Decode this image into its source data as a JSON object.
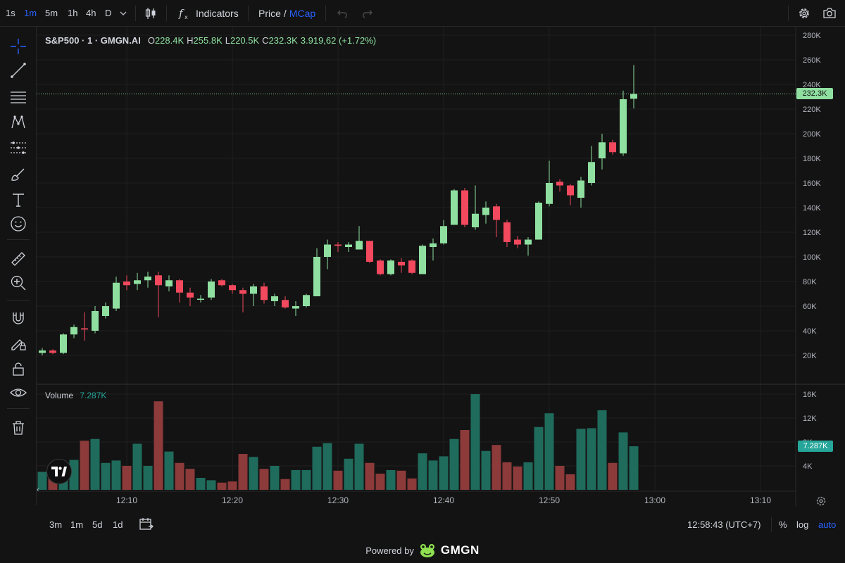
{
  "toolbar": {
    "timeframes": [
      "1s",
      "1m",
      "5m",
      "1h",
      "4h",
      "D"
    ],
    "active_timeframe": "1m",
    "indicators_label": "Indicators",
    "price_label": "Price",
    "price_sep": "/",
    "mcap_label": "MCap"
  },
  "legend": {
    "symbol": "S&P500 · 1 · GMGN.AI",
    "o_key": "O",
    "o_val": "228.4K",
    "h_key": "H",
    "h_val": "255.8K",
    "l_key": "L",
    "l_val": "220.5K",
    "c_key": "C",
    "c_val": "232.3K",
    "change": "3.919,62 (+1.72%)"
  },
  "volume_legend": {
    "label": "Volume",
    "value": "7.287K"
  },
  "price_tag": "232.3K",
  "volume_tag": "7.287K",
  "price_axis": [
    "280K",
    "260K",
    "240K",
    "220K",
    "200K",
    "180K",
    "160K",
    "140K",
    "120K",
    "100K",
    "80K",
    "60K",
    "40K",
    "20K"
  ],
  "volume_axis": [
    "16K",
    "12K",
    "8K",
    "4K"
  ],
  "time_axis": [
    "12:10",
    "12:20",
    "12:30",
    "12:40",
    "12:50",
    "13:00",
    "13:10"
  ],
  "bottom": {
    "ranges": [
      "3m",
      "1m",
      "5d",
      "1d"
    ],
    "clock": "12:58:43 (UTC+7)",
    "percent": "%",
    "log": "log",
    "auto": "auto"
  },
  "powered": {
    "text": "Powered by",
    "brand": "GMGN"
  },
  "tv_logo": "TV",
  "colors": {
    "up": "#8fe0a0",
    "down": "#f2495e",
    "vol_up": "#1f6b5c",
    "vol_down": "#8c3a3a",
    "accent": "#2962ff",
    "background": "#131313"
  },
  "chart_data": {
    "type": "candlestick",
    "ylim": [
      0,
      290000
    ],
    "volume_ylim": [
      0,
      18000
    ],
    "x_start": "12:02",
    "x_step_minutes": 1,
    "candles": [
      {
        "o": 22000,
        "h": 26000,
        "l": 20000,
        "c": 24000,
        "v": 3000
      },
      {
        "o": 24000,
        "h": 25000,
        "l": 21000,
        "c": 22000,
        "v": 2600
      },
      {
        "o": 22000,
        "h": 38000,
        "l": 21000,
        "c": 37000,
        "v": 3500
      },
      {
        "o": 37000,
        "h": 45000,
        "l": 34000,
        "c": 43000,
        "v": 5000
      },
      {
        "o": 42000,
        "h": 55000,
        "l": 32000,
        "c": 41000,
        "v": 8200
      },
      {
        "o": 40000,
        "h": 60000,
        "l": 38000,
        "c": 56000,
        "v": 8500
      },
      {
        "o": 52000,
        "h": 63000,
        "l": 50000,
        "c": 60000,
        "v": 4500
      },
      {
        "o": 58000,
        "h": 84000,
        "l": 56000,
        "c": 79000,
        "v": 4900
      },
      {
        "o": 80000,
        "h": 85000,
        "l": 73000,
        "c": 77000,
        "v": 4000
      },
      {
        "o": 78000,
        "h": 87000,
        "l": 73000,
        "c": 81000,
        "v": 7700
      },
      {
        "o": 81000,
        "h": 88000,
        "l": 75000,
        "c": 84000,
        "v": 4000
      },
      {
        "o": 85000,
        "h": 88000,
        "l": 51000,
        "c": 77000,
        "v": 14800
      },
      {
        "o": 76000,
        "h": 85000,
        "l": 72000,
        "c": 81000,
        "v": 6400
      },
      {
        "o": 81000,
        "h": 82000,
        "l": 63000,
        "c": 71000,
        "v": 4500
      },
      {
        "o": 71000,
        "h": 75000,
        "l": 60000,
        "c": 67000,
        "v": 3500
      },
      {
        "o": 66000,
        "h": 69000,
        "l": 63000,
        "c": 66000,
        "v": 2000
      },
      {
        "o": 67000,
        "h": 82000,
        "l": 65000,
        "c": 80000,
        "v": 1600
      },
      {
        "o": 81000,
        "h": 82000,
        "l": 76000,
        "c": 77000,
        "v": 1200
      },
      {
        "o": 77000,
        "h": 78000,
        "l": 70000,
        "c": 73000,
        "v": 1400
      },
      {
        "o": 73000,
        "h": 75000,
        "l": 55000,
        "c": 70000,
        "v": 6000
      },
      {
        "o": 70000,
        "h": 78000,
        "l": 60000,
        "c": 76000,
        "v": 5500
      },
      {
        "o": 76000,
        "h": 79000,
        "l": 62000,
        "c": 65000,
        "v": 3500
      },
      {
        "o": 64000,
        "h": 70000,
        "l": 60000,
        "c": 68000,
        "v": 4000
      },
      {
        "o": 65000,
        "h": 68000,
        "l": 58000,
        "c": 59000,
        "v": 1800
      },
      {
        "o": 58000,
        "h": 64000,
        "l": 52000,
        "c": 60000,
        "v": 3300
      },
      {
        "o": 60000,
        "h": 70000,
        "l": 59000,
        "c": 69000,
        "v": 3300
      },
      {
        "o": 68000,
        "h": 107000,
        "l": 68000,
        "c": 100000,
        "v": 7200
      },
      {
        "o": 100000,
        "h": 114000,
        "l": 90000,
        "c": 110000,
        "v": 7800
      },
      {
        "o": 110000,
        "h": 112000,
        "l": 104000,
        "c": 109000,
        "v": 3200
      },
      {
        "o": 108000,
        "h": 112000,
        "l": 104000,
        "c": 110000,
        "v": 5200
      },
      {
        "o": 106000,
        "h": 125000,
        "l": 106000,
        "c": 113000,
        "v": 7700
      },
      {
        "o": 113000,
        "h": 113000,
        "l": 95000,
        "c": 96000,
        "v": 4500
      },
      {
        "o": 97000,
        "h": 98000,
        "l": 85000,
        "c": 86000,
        "v": 2700
      },
      {
        "o": 86000,
        "h": 98000,
        "l": 85000,
        "c": 97000,
        "v": 3300
      },
      {
        "o": 96000,
        "h": 99000,
        "l": 87000,
        "c": 93000,
        "v": 3200
      },
      {
        "o": 97000,
        "h": 98000,
        "l": 86000,
        "c": 87000,
        "v": 1900
      },
      {
        "o": 86000,
        "h": 110000,
        "l": 86000,
        "c": 109000,
        "v": 6100
      },
      {
        "o": 108000,
        "h": 115000,
        "l": 97000,
        "c": 111000,
        "v": 4900
      },
      {
        "o": 111000,
        "h": 130000,
        "l": 110000,
        "c": 125000,
        "v": 5600
      },
      {
        "o": 126000,
        "h": 155000,
        "l": 126000,
        "c": 154000,
        "v": 8500
      },
      {
        "o": 154000,
        "h": 156000,
        "l": 124000,
        "c": 126000,
        "v": 10000
      },
      {
        "o": 124000,
        "h": 158000,
        "l": 122000,
        "c": 135000,
        "v": 16000
      },
      {
        "o": 134000,
        "h": 145000,
        "l": 127000,
        "c": 140000,
        "v": 6500
      },
      {
        "o": 141000,
        "h": 143000,
        "l": 116000,
        "c": 130000,
        "v": 7500
      },
      {
        "o": 128000,
        "h": 130000,
        "l": 108000,
        "c": 112000,
        "v": 4600
      },
      {
        "o": 114000,
        "h": 117000,
        "l": 107000,
        "c": 110000,
        "v": 3900
      },
      {
        "o": 110000,
        "h": 116000,
        "l": 101000,
        "c": 114000,
        "v": 4600
      },
      {
        "o": 114000,
        "h": 145000,
        "l": 114000,
        "c": 144000,
        "v": 10500
      },
      {
        "o": 143000,
        "h": 178000,
        "l": 141000,
        "c": 160000,
        "v": 12800
      },
      {
        "o": 161000,
        "h": 163000,
        "l": 153000,
        "c": 158000,
        "v": 4000
      },
      {
        "o": 158000,
        "h": 159000,
        "l": 142000,
        "c": 150000,
        "v": 2600
      },
      {
        "o": 148000,
        "h": 165000,
        "l": 140000,
        "c": 162000,
        "v": 10200
      },
      {
        "o": 160000,
        "h": 190000,
        "l": 158000,
        "c": 177000,
        "v": 10300
      },
      {
        "o": 180000,
        "h": 200000,
        "l": 171000,
        "c": 193000,
        "v": 13300
      },
      {
        "o": 193000,
        "h": 195000,
        "l": 183000,
        "c": 185000,
        "v": 4500
      },
      {
        "o": 184000,
        "h": 235000,
        "l": 182000,
        "c": 228000,
        "v": 9600
      },
      {
        "o": 228400,
        "h": 255800,
        "l": 220500,
        "c": 232300,
        "v": 7287
      }
    ]
  }
}
